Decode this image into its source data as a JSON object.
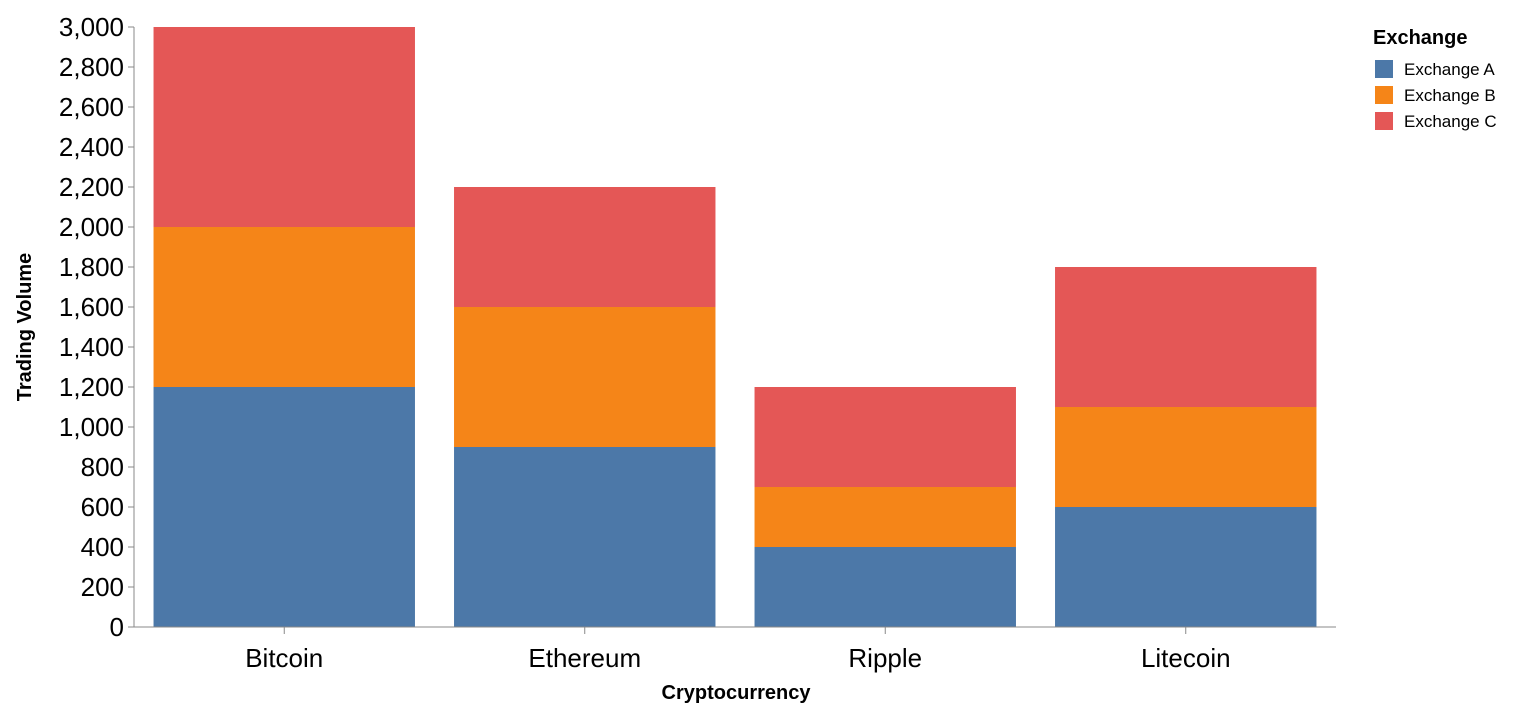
{
  "chart_data": {
    "type": "bar",
    "stacked": true,
    "categories": [
      "Bitcoin",
      "Ethereum",
      "Ripple",
      "Litecoin"
    ],
    "series": [
      {
        "name": "Exchange A",
        "color": "#4c78a8",
        "values": [
          1200,
          900,
          400,
          600
        ]
      },
      {
        "name": "Exchange B",
        "color": "#f58518",
        "values": [
          800,
          700,
          300,
          500
        ]
      },
      {
        "name": "Exchange C",
        "color": "#e45756",
        "values": [
          1000,
          600,
          500,
          700
        ]
      }
    ],
    "xlabel": "Cryptocurrency",
    "ylabel": "Trading Volume",
    "ylim": [
      0,
      3000
    ],
    "yticks": [
      0,
      200,
      400,
      600,
      800,
      1000,
      1200,
      1400,
      1600,
      1800,
      2000,
      2200,
      2400,
      2600,
      2800,
      3000
    ],
    "grid": false,
    "legend": {
      "title": "Exchange",
      "position": "top-right"
    }
  }
}
